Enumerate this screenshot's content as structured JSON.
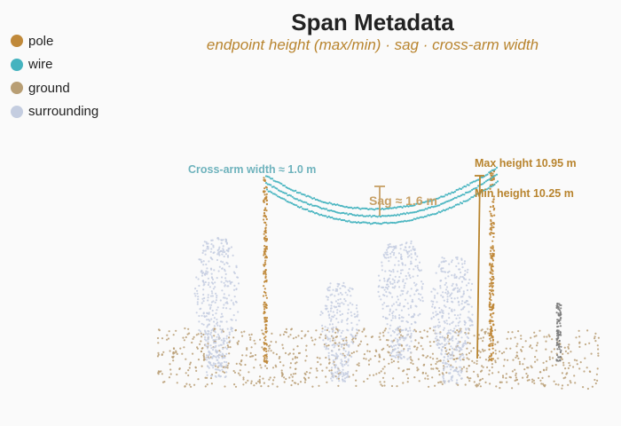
{
  "title": "Span Metadata",
  "subtitle": "endpoint height (max/min) · sag · cross-arm width",
  "legend": [
    {
      "label": "pole",
      "color": "#c0893a"
    },
    {
      "label": "wire",
      "color": "#45b3bf"
    },
    {
      "label": "ground",
      "color": "#b89e74"
    },
    {
      "label": "surrounding",
      "color": "#c4cde0"
    }
  ],
  "annotations": {
    "crossarm": "Cross-arm width ≈ 1.0 m",
    "sag": "Sag ≈ 1.6 m",
    "max_height": "Max height 10.95 m",
    "min_height": "Min height 10.25 m"
  },
  "colors": {
    "pole": "#c0893a",
    "wire": "#45b3bf",
    "ground": "#b89e74",
    "surrounding": "#c4cde0",
    "dark_vegetation": "#7d7d7d",
    "annotation_crossarm": "#6fb3bd",
    "annotation_height": "#b8842e",
    "annotation_sag": "#c7a066"
  }
}
